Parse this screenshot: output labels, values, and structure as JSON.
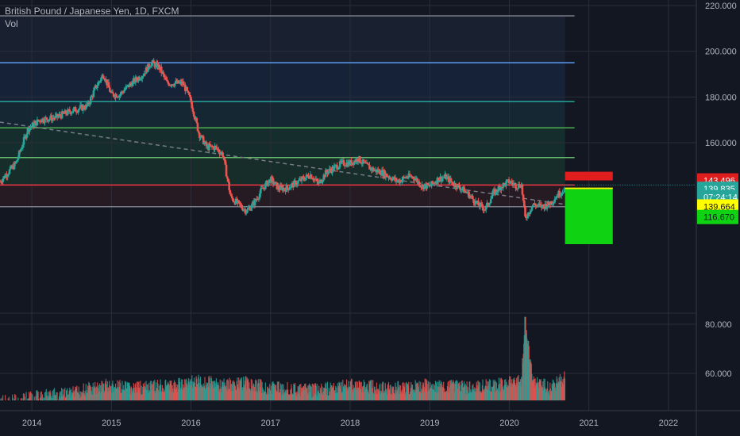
{
  "header": {
    "title": "British Pound / Japanese Yen, 1D, FXCM",
    "indicator": "Vol"
  },
  "colors": {
    "background": "#131722",
    "grid": "#2a2e39",
    "candle_up": "#26a69a",
    "candle_down": "#ef5350",
    "volume_up": "#26a69a",
    "volume_down": "#ef5350",
    "trendline": "#787b86",
    "position_stop": "#e11e1e",
    "position_target": "#0fd212",
    "entry_line": "#ffff00",
    "dotted_price": "#26a69a"
  },
  "chart_data": {
    "type": "candlestick",
    "symbol": "GBPJPY",
    "interval": "1D",
    "x_axis_labels": [
      "2014",
      "2015",
      "2016",
      "2017",
      "2018",
      "2019",
      "2020",
      "2021",
      "2022"
    ],
    "price_axis_labels": [
      "220.000",
      "200.000",
      "180.000",
      "160.000"
    ],
    "volume_axis_labels": [
      "80.000",
      "60.000"
    ],
    "ylim_price": [
      133,
      223
    ],
    "xlim_year": [
      2013.6,
      2022.35
    ],
    "price_series": {
      "name": "",
      "points": [
        [
          2013.6,
          143
        ],
        [
          2013.8,
          151
        ],
        [
          2013.95,
          166
        ],
        [
          2014.1,
          170
        ],
        [
          2014.3,
          171
        ],
        [
          2014.5,
          174
        ],
        [
          2014.7,
          176
        ],
        [
          2014.8,
          184
        ],
        [
          2014.9,
          190
        ],
        [
          2015.0,
          181
        ],
        [
          2015.1,
          181
        ],
        [
          2015.25,
          186
        ],
        [
          2015.4,
          190
        ],
        [
          2015.5,
          195
        ],
        [
          2015.6,
          193
        ],
        [
          2015.7,
          186
        ],
        [
          2015.8,
          186
        ],
        [
          2015.9,
          186
        ],
        [
          2016.0,
          178
        ],
        [
          2016.1,
          164
        ],
        [
          2016.2,
          158
        ],
        [
          2016.3,
          158
        ],
        [
          2016.4,
          155
        ],
        [
          2016.5,
          136
        ],
        [
          2016.6,
          133
        ],
        [
          2016.7,
          130
        ],
        [
          2016.8,
          134
        ],
        [
          2016.9,
          140
        ],
        [
          2017.0,
          144
        ],
        [
          2017.1,
          140
        ],
        [
          2017.2,
          140
        ],
        [
          2017.3,
          142
        ],
        [
          2017.4,
          144
        ],
        [
          2017.5,
          146
        ],
        [
          2017.6,
          142
        ],
        [
          2017.7,
          147
        ],
        [
          2017.8,
          149
        ],
        [
          2017.9,
          151
        ],
        [
          2018.0,
          151
        ],
        [
          2018.1,
          153
        ],
        [
          2018.2,
          150
        ],
        [
          2018.3,
          148
        ],
        [
          2018.4,
          147
        ],
        [
          2018.5,
          145
        ],
        [
          2018.6,
          143
        ],
        [
          2018.7,
          145
        ],
        [
          2018.8,
          145
        ],
        [
          2018.9,
          141
        ],
        [
          2019.0,
          141
        ],
        [
          2019.1,
          144
        ],
        [
          2019.2,
          145
        ],
        [
          2019.3,
          142
        ],
        [
          2019.4,
          140
        ],
        [
          2019.5,
          137
        ],
        [
          2019.6,
          133
        ],
        [
          2019.7,
          131
        ],
        [
          2019.8,
          138
        ],
        [
          2019.9,
          141
        ],
        [
          2020.0,
          143
        ],
        [
          2020.1,
          141
        ],
        [
          2020.15,
          142
        ],
        [
          2020.2,
          127
        ],
        [
          2020.3,
          133
        ],
        [
          2020.4,
          132
        ],
        [
          2020.5,
          133
        ],
        [
          2020.6,
          137
        ],
        [
          2020.7,
          140
        ]
      ]
    },
    "volume_series": {
      "name": "Vol",
      "points": [
        [
          2013.6,
          51
        ],
        [
          2014.0,
          53
        ],
        [
          2014.5,
          55
        ],
        [
          2014.9,
          58
        ],
        [
          2015.3,
          57
        ],
        [
          2015.8,
          58
        ],
        [
          2016.1,
          60
        ],
        [
          2016.4,
          58
        ],
        [
          2016.7,
          59
        ],
        [
          2017.0,
          57
        ],
        [
          2017.5,
          56
        ],
        [
          2018.0,
          58
        ],
        [
          2018.5,
          57
        ],
        [
          2019.0,
          58
        ],
        [
          2019.5,
          57
        ],
        [
          2019.8,
          58
        ],
        [
          2020.15,
          60
        ],
        [
          2020.2,
          83
        ],
        [
          2020.3,
          60
        ],
        [
          2020.5,
          57
        ],
        [
          2020.7,
          61
        ]
      ]
    },
    "horizontal_levels": [
      {
        "price": 215.5,
        "color": "#787b86"
      },
      {
        "price": 195.0,
        "color": "#5b9cf6"
      },
      {
        "price": 178.0,
        "color": "#26a69a"
      },
      {
        "price": 166.5,
        "color": "#4caf50"
      },
      {
        "price": 153.5,
        "color": "#66bb6a"
      },
      {
        "price": 141.5,
        "color": "#f23645"
      },
      {
        "price": 132.0,
        "color": "#787b86"
      }
    ],
    "trendline": {
      "from": [
        2013.6,
        169
      ],
      "to": [
        2020.7,
        133
      ]
    },
    "position": {
      "start_year": 2020.7,
      "end_year": 2021.3,
      "stop_price": 143.496,
      "entry_price": 139.664,
      "target_price": 116.67
    },
    "price_tags": [
      {
        "text": "143.496",
        "price": 143.496,
        "bg": "#e11e1e",
        "fg": "#ffffff"
      },
      {
        "text": "139.835",
        "price": 139.835,
        "bg": "#26a69a",
        "fg": "#ffffff"
      },
      {
        "text": "07:24:14",
        "price": 136.2,
        "bg": "#26a69a",
        "fg": "#ffffff"
      },
      {
        "text": "139.664",
        "price": 132.1,
        "bg": "#ffff00",
        "fg": "#131722"
      },
      {
        "text": "116.670",
        "price": 127.5,
        "bg": "#0fd212",
        "fg": "#131722"
      }
    ],
    "legend": "top-left",
    "grid": true
  }
}
